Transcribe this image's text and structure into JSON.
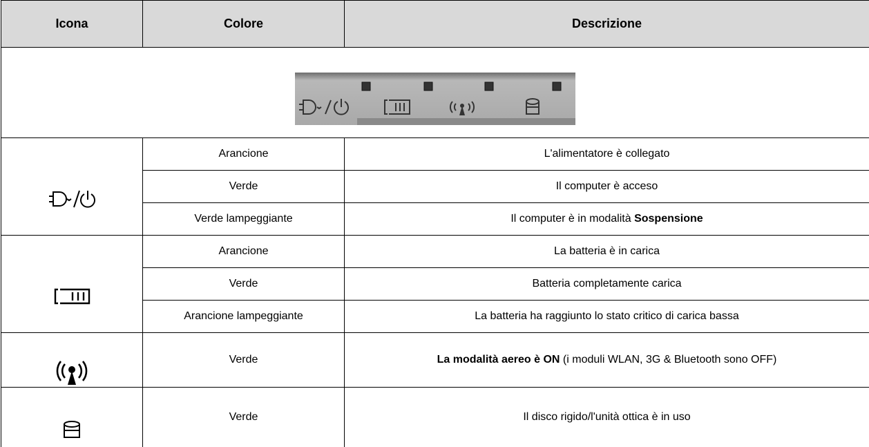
{
  "table": {
    "header": [
      "Icona",
      "Colore",
      "Descrizione"
    ],
    "groups": [
      {
        "rows": [
          {
            "color": "Arancione",
            "description": [
              {
                "text": "L'alimentatore è collegato",
                "bold": false
              }
            ]
          },
          {
            "color": "Verde",
            "description": [
              {
                "text": "Il computer è acceso",
                "bold": false
              }
            ]
          },
          {
            "color": "Verde lampeggiante",
            "description": [
              {
                "text": "Il computer è in modalità ",
                "bold": false
              },
              {
                "text": "Sospensione",
                "bold": true
              }
            ]
          }
        ]
      },
      {
        "rows": [
          {
            "color": "Arancione",
            "description": [
              {
                "text": "La batteria è in carica",
                "bold": false
              }
            ]
          },
          {
            "color": "Verde",
            "description": [
              {
                "text": "Batteria completamente carica",
                "bold": false
              }
            ]
          },
          {
            "color": "Arancione lampeggiante",
            "description": [
              {
                "text": "La batteria ha raggiunto lo stato critico di carica bassa",
                "bold": false
              }
            ]
          }
        ]
      },
      {
        "rows": [
          {
            "color": "Verde",
            "description": [
              {
                "text": "La modalità aereo è ON",
                "bold": true
              },
              {
                "text": " (i moduli WLAN, 3G & Bluetooth sono OFF)",
                "bold": false
              }
            ]
          }
        ]
      },
      {
        "rows": [
          {
            "color": "Verde",
            "description": [
              {
                "text": "Il disco rigido/l'unità ottica è in uso",
                "bold": false
              }
            ]
          }
        ]
      }
    ]
  }
}
